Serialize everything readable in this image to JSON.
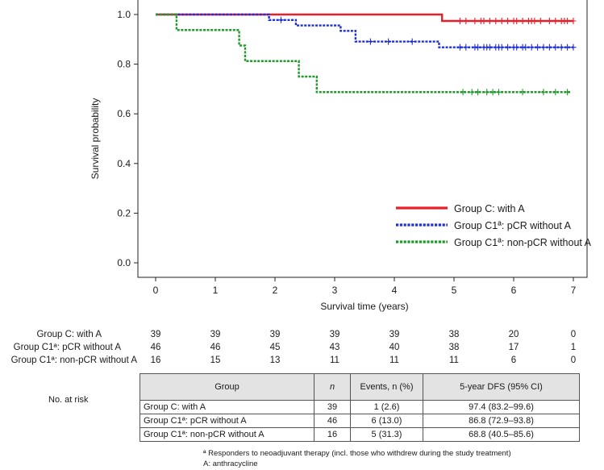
{
  "chart_data": {
    "type": "line",
    "subtype": "kaplan-meier",
    "title": "",
    "xlabel": "Survival time (years)",
    "ylabel": "Survival probability",
    "xlim": [
      0,
      7.25
    ],
    "ylim": [
      0,
      1.0
    ],
    "x_ticks": [
      0,
      1,
      2,
      3,
      4,
      5,
      6,
      7
    ],
    "y_ticks": [
      0.0,
      0.2,
      0.4,
      0.6,
      0.8,
      1.0
    ],
    "x_tick_labels": [
      "0",
      "1",
      "2",
      "3",
      "4",
      "5",
      "6",
      "7"
    ],
    "y_tick_labels": [
      "0.0",
      "0.2",
      "0.4",
      "0.6",
      "0.8",
      "1.0"
    ],
    "legend_position": "bottom-right",
    "series": [
      {
        "name": "Group C: with A",
        "color": "#e8202a",
        "style": "solid",
        "steps": [
          [
            0,
            1.0
          ],
          [
            4.8,
            0.974
          ]
        ],
        "end_x": 7.0,
        "censor_x": [
          5.1,
          5.2,
          5.35,
          5.45,
          5.5,
          5.6,
          5.7,
          5.8,
          5.9,
          6.0,
          6.05,
          6.15,
          6.25,
          6.3,
          6.35,
          6.45,
          6.6,
          6.7,
          6.8,
          6.85,
          6.9,
          7.0
        ]
      },
      {
        "name": "Group C1ª: pCR without A",
        "color": "#1f2fd6",
        "style": "dotted",
        "steps": [
          [
            0,
            1.0
          ],
          [
            1.9,
            0.978
          ],
          [
            2.35,
            0.956
          ],
          [
            3.1,
            0.934
          ],
          [
            3.35,
            0.891
          ],
          [
            4.75,
            0.868
          ]
        ],
        "end_x": 7.0,
        "censor_x": [
          2.1,
          3.6,
          3.9,
          4.3,
          5.1,
          5.2,
          5.35,
          5.4,
          5.5,
          5.55,
          5.6,
          5.7,
          5.75,
          5.8,
          5.9,
          6.0,
          6.05,
          6.15,
          6.2,
          6.3,
          6.4,
          6.5,
          6.6,
          6.7,
          6.8,
          6.9,
          7.0
        ]
      },
      {
        "name": "Group C1ª: non-pCR without A",
        "color": "#1f9a28",
        "style": "dotted",
        "steps": [
          [
            0,
            1.0
          ],
          [
            0.35,
            0.9375
          ],
          [
            1.4,
            0.875
          ],
          [
            1.5,
            0.8125
          ],
          [
            2.4,
            0.75
          ],
          [
            2.7,
            0.6875
          ]
        ],
        "end_x": 6.95,
        "censor_x": [
          5.15,
          5.3,
          5.4,
          5.55,
          5.65,
          5.75,
          6.15,
          6.5,
          6.7,
          6.9
        ]
      }
    ]
  },
  "risk_table": {
    "label": "No. at risk",
    "rows": [
      {
        "name": "Group C: with A",
        "counts": [
          "39",
          "39",
          "39",
          "39",
          "39",
          "38",
          "20",
          "0"
        ]
      },
      {
        "name": "Group C1ª: pCR without A",
        "counts": [
          "46",
          "46",
          "45",
          "43",
          "40",
          "38",
          "17",
          "1"
        ]
      },
      {
        "name": "Group C1ª: non-pCR without A",
        "counts": [
          "16",
          "15",
          "13",
          "11",
          "11",
          "11",
          "6",
          "0"
        ]
      }
    ]
  },
  "summary_table": {
    "headers": {
      "group": "Group",
      "n": "n",
      "events": "Events, n (%)",
      "dfs": "5-year DFS (95% CI)"
    },
    "rows": [
      {
        "group": "Group C: with A",
        "n": "39",
        "events": "1 (2.6)",
        "dfs": "97.4 (83.2–99.6)"
      },
      {
        "group": "Group C1ª: pCR without A",
        "n": "46",
        "events": "6 (13.0)",
        "dfs": "86.8 (72.9–93.8)"
      },
      {
        "group": "Group C1ª: non-pCR without A",
        "n": "16",
        "events": "5 (31.3)",
        "dfs": "68.8 (40.5–85.6)"
      }
    ]
  },
  "footnotes": {
    "line1": "ª Responders to neoadjuvant therapy (incl. those who withdrew during the study treatment)",
    "line2": "A: anthracycline"
  }
}
